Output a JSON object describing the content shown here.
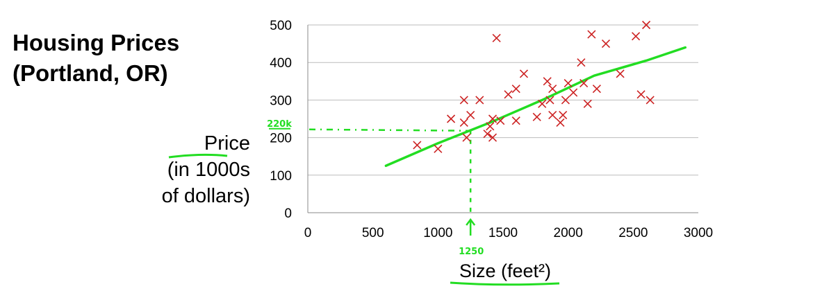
{
  "title_line1": "Housing Prices",
  "title_line2": "(Portland, OR)",
  "ylabel_line1": "Price",
  "ylabel_line2": "(in 1000s",
  "ylabel_line3": "of dollars)",
  "annotations": {
    "y_marker": "220k",
    "x_marker": "1250"
  },
  "colors": {
    "points": "#cc2222",
    "annotation": "#22dd22",
    "grid": "#bbbbbb"
  },
  "chart_data": {
    "type": "scatter",
    "xlabel": "Size (feet²)",
    "ylabel": "Price (in 1000s of dollars)",
    "xlim": [
      0,
      3000
    ],
    "ylim": [
      0,
      500
    ],
    "x_ticks": [
      "0",
      "500",
      "1000",
      "1500",
      "2000",
      "2500",
      "3000"
    ],
    "y_ticks": [
      "0",
      "100",
      "200",
      "300",
      "400",
      "500"
    ],
    "grid": "horizontal",
    "points": [
      {
        "x": 840,
        "y": 180
      },
      {
        "x": 1000,
        "y": 170
      },
      {
        "x": 1100,
        "y": 250
      },
      {
        "x": 1200,
        "y": 300
      },
      {
        "x": 1200,
        "y": 240
      },
      {
        "x": 1220,
        "y": 200
      },
      {
        "x": 1250,
        "y": 260
      },
      {
        "x": 1320,
        "y": 300
      },
      {
        "x": 1380,
        "y": 210
      },
      {
        "x": 1400,
        "y": 230
      },
      {
        "x": 1420,
        "y": 200
      },
      {
        "x": 1420,
        "y": 250
      },
      {
        "x": 1450,
        "y": 465
      },
      {
        "x": 1480,
        "y": 245
      },
      {
        "x": 1540,
        "y": 315
      },
      {
        "x": 1600,
        "y": 330
      },
      {
        "x": 1600,
        "y": 245
      },
      {
        "x": 1660,
        "y": 370
      },
      {
        "x": 1760,
        "y": 255
      },
      {
        "x": 1800,
        "y": 290
      },
      {
        "x": 1840,
        "y": 350
      },
      {
        "x": 1860,
        "y": 300
      },
      {
        "x": 1880,
        "y": 330
      },
      {
        "x": 1880,
        "y": 260
      },
      {
        "x": 1940,
        "y": 240
      },
      {
        "x": 1960,
        "y": 260
      },
      {
        "x": 1980,
        "y": 300
      },
      {
        "x": 2000,
        "y": 345
      },
      {
        "x": 2040,
        "y": 320
      },
      {
        "x": 2100,
        "y": 400
      },
      {
        "x": 2120,
        "y": 345
      },
      {
        "x": 2150,
        "y": 290
      },
      {
        "x": 2180,
        "y": 475
      },
      {
        "x": 2220,
        "y": 330
      },
      {
        "x": 2290,
        "y": 450
      },
      {
        "x": 2400,
        "y": 370
      },
      {
        "x": 2520,
        "y": 470
      },
      {
        "x": 2560,
        "y": 315
      },
      {
        "x": 2600,
        "y": 500
      },
      {
        "x": 2630,
        "y": 300
      }
    ],
    "fit_line": [
      {
        "x": 600,
        "y": 125
      },
      {
        "x": 1000,
        "y": 185
      },
      {
        "x": 1400,
        "y": 240
      },
      {
        "x": 1800,
        "y": 300
      },
      {
        "x": 2200,
        "y": 365
      },
      {
        "x": 2600,
        "y": 405
      },
      {
        "x": 2900,
        "y": 440
      }
    ],
    "prediction": {
      "x": 1250,
      "y": 220
    }
  }
}
